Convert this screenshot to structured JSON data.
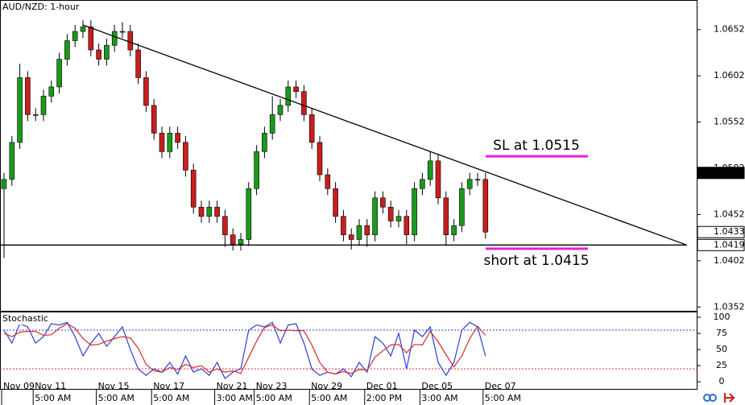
{
  "chart_data": [
    {
      "type": "candlestick",
      "title": "AUD/NZD: 1-hour",
      "categories": [
        "Nov 09",
        null,
        null,
        null,
        "Nov 11",
        null,
        null,
        null,
        null,
        null,
        null,
        null,
        "Nov 15",
        null,
        null,
        null,
        null,
        null,
        null,
        "Nov 17",
        null,
        null,
        null,
        null,
        null,
        null,
        null,
        "Nov 21",
        null,
        null,
        null,
        null,
        "Nov 23",
        null,
        null,
        null,
        null,
        null,
        null,
        "Nov 29",
        null,
        null,
        null,
        null,
        null,
        null,
        "Dec 01",
        null,
        null,
        null,
        null,
        null,
        null,
        "Dec 05",
        null,
        null,
        null,
        null,
        null,
        null,
        null,
        "Dec 07"
      ],
      "times": [
        null,
        null,
        null,
        null,
        "5:00 AM",
        null,
        null,
        null,
        null,
        null,
        null,
        null,
        "5:00 AM",
        null,
        null,
        null,
        null,
        null,
        null,
        "5:00 AM",
        null,
        null,
        null,
        null,
        null,
        null,
        null,
        "3:00 AM",
        null,
        null,
        null,
        null,
        "5:00 AM",
        null,
        null,
        null,
        null,
        null,
        null,
        "5:00 AM",
        null,
        null,
        null,
        null,
        null,
        null,
        "2:00 PM",
        null,
        null,
        null,
        null,
        null,
        null,
        "3:00 AM",
        null,
        null,
        null,
        null,
        null,
        null,
        null,
        "5:00 AM"
      ],
      "open": [
        1.048,
        1.049,
        1.053,
        1.06,
        1.056,
        1.056,
        1.058,
        1.059,
        1.062,
        1.064,
        1.065,
        1.0655,
        1.063,
        1.062,
        1.0635,
        1.065,
        1.065,
        1.063,
        1.06,
        1.057,
        1.054,
        1.052,
        1.054,
        1.053,
        1.05,
        1.046,
        1.045,
        1.046,
        1.045,
        1.043,
        1.042,
        1.0425,
        1.048,
        1.052,
        1.054,
        1.056,
        1.057,
        1.059,
        1.0585,
        1.056,
        1.053,
        1.0495,
        1.048,
        1.045,
        1.043,
        1.0425,
        1.044,
        1.043,
        1.047,
        1.046,
        1.0445,
        1.045,
        1.043,
        1.048,
        1.049,
        1.051,
        1.047,
        1.043,
        1.044,
        1.048,
        1.049,
        1.049
      ],
      "high": [
        1.0497,
        1.0537,
        1.0615,
        1.0607,
        1.0567,
        1.0587,
        1.0597,
        1.0627,
        1.0647,
        1.0657,
        1.0662,
        1.0662,
        1.0637,
        1.0642,
        1.0657,
        1.066,
        1.0657,
        1.0637,
        1.0607,
        1.0577,
        1.0547,
        1.0547,
        1.0547,
        1.0537,
        1.0507,
        1.0467,
        1.0467,
        1.0467,
        1.0457,
        1.0437,
        1.0432,
        1.0487,
        1.0527,
        1.0547,
        1.058,
        1.0577,
        1.0597,
        1.0597,
        1.0592,
        1.0567,
        1.0537,
        1.0502,
        1.0487,
        1.0457,
        1.0437,
        1.0447,
        1.0447,
        1.0477,
        1.0477,
        1.0467,
        1.0457,
        1.0457,
        1.0487,
        1.0497,
        1.052,
        1.0517,
        1.0477,
        1.0447,
        1.0487,
        1.0497,
        1.0497,
        1.0497
      ],
      "low": [
        1.0405,
        1.0483,
        1.0523,
        1.0553,
        1.0553,
        1.0553,
        1.0573,
        1.0583,
        1.0613,
        1.0633,
        1.0643,
        1.0623,
        1.0613,
        1.0613,
        1.0628,
        1.0643,
        1.0623,
        1.0593,
        1.0563,
        1.0533,
        1.0513,
        1.0513,
        1.0523,
        1.0493,
        1.0453,
        1.0443,
        1.0443,
        1.0443,
        1.0417,
        1.0413,
        1.0413,
        1.0418,
        1.0473,
        1.0513,
        1.0533,
        1.0553,
        1.0563,
        1.0578,
        1.0553,
        1.0523,
        1.0488,
        1.0473,
        1.0443,
        1.0423,
        1.0414,
        1.0418,
        1.0417,
        1.0423,
        1.0453,
        1.0438,
        1.0438,
        1.042,
        1.0423,
        1.0473,
        1.0483,
        1.0463,
        1.0418,
        1.0423,
        1.0433,
        1.0473,
        1.0483,
        1.0426
      ],
      "close": [
        1.049,
        1.053,
        1.06,
        1.056,
        1.056,
        1.058,
        1.059,
        1.062,
        1.064,
        1.065,
        1.0655,
        1.063,
        1.062,
        1.0635,
        1.065,
        1.065,
        1.063,
        1.06,
        1.057,
        1.054,
        1.052,
        1.054,
        1.053,
        1.05,
        1.046,
        1.045,
        1.046,
        1.045,
        1.043,
        1.042,
        1.0425,
        1.048,
        1.052,
        1.054,
        1.056,
        1.057,
        1.059,
        1.0585,
        1.056,
        1.053,
        1.0495,
        1.048,
        1.045,
        1.043,
        1.0425,
        1.044,
        1.043,
        1.047,
        1.046,
        1.0445,
        1.045,
        1.043,
        1.048,
        1.049,
        1.051,
        1.047,
        1.043,
        1.044,
        1.048,
        1.049,
        1.049,
        1.0433
      ],
      "up_color": "#1a9a1a",
      "down_color": "#c81e1e",
      "ylim": [
        1.0347,
        1.0684
      ],
      "yticks": [
        1.0352,
        1.0402,
        1.0452,
        1.0502,
        1.0552,
        1.0602,
        1.0652
      ],
      "price_tags": [
        {
          "value": 1.0497,
          "dark": true
        },
        {
          "value": 1.0433,
          "dark": false
        },
        {
          "value": 1.0419,
          "dark": false
        }
      ],
      "trendlines": [
        {
          "from": [
            10,
            1.0657
          ],
          "to": [
            86.5,
            1.0419
          ]
        },
        {
          "from": [
            -0.5,
            1.0419
          ],
          "to": [
            86.5,
            1.0419
          ]
        }
      ],
      "annotations": [
        {
          "text": "SL at 1.0515",
          "level": 1.0515,
          "color": "#e020e0"
        },
        {
          "text": "short at 1.0415",
          "level": 1.0415,
          "color": "#e020e0"
        }
      ]
    },
    {
      "type": "line",
      "title": "Stochastic",
      "series": [
        {
          "color": "#2b3fd6",
          "values": [
            80,
            60,
            90,
            85,
            60,
            70,
            90,
            88,
            92,
            70,
            40,
            60,
            75,
            55,
            70,
            85,
            50,
            20,
            10,
            20,
            15,
            30,
            12,
            40,
            15,
            20,
            10,
            30,
            5,
            15,
            20,
            80,
            88,
            85,
            92,
            60,
            88,
            90,
            60,
            20,
            10,
            15,
            12,
            20,
            8,
            30,
            15,
            70,
            60,
            40,
            75,
            20,
            80,
            70,
            85,
            30,
            10,
            30,
            80,
            92,
            85,
            40
          ]
        },
        {
          "color": "#d62b2b",
          "values": [
            75,
            70,
            77,
            78,
            78,
            72,
            73,
            83,
            90,
            83,
            67,
            57,
            58,
            63,
            67,
            70,
            68,
            52,
            27,
            17,
            15,
            22,
            19,
            27,
            22,
            25,
            15,
            20,
            15,
            17,
            13,
            38,
            63,
            84,
            88,
            79,
            80,
            79,
            79,
            57,
            30,
            15,
            12,
            16,
            13,
            19,
            18,
            38,
            48,
            57,
            58,
            45,
            58,
            57,
            78,
            62,
            42,
            23,
            40,
            67,
            86,
            72
          ]
        }
      ],
      "ylim": [
        -11,
        107.5
      ],
      "yticks": [
        0,
        25,
        50,
        75,
        100
      ],
      "levels": [
        {
          "value": 80,
          "color": "#2b3fd6"
        },
        {
          "value": 20,
          "color": "#d62b2b"
        }
      ]
    }
  ]
}
